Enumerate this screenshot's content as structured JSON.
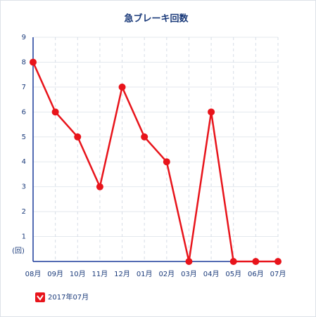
{
  "chart_data": {
    "type": "line",
    "title": "急ブレーキ回数",
    "y_unit": "(回)",
    "categories": [
      "08月",
      "09月",
      "10月",
      "11月",
      "12月",
      "01月",
      "02月",
      "03月",
      "04月",
      "05月",
      "06月",
      "07月"
    ],
    "series": [
      {
        "name": "2017年07月",
        "color": "#e8141b",
        "values": [
          8,
          6,
          5,
          3,
          7,
          5,
          4,
          0,
          6,
          0,
          0,
          0
        ]
      }
    ],
    "ylim": [
      0,
      9
    ],
    "yticks": [
      1,
      2,
      3,
      4,
      5,
      6,
      7,
      8,
      9
    ],
    "grid": true
  }
}
